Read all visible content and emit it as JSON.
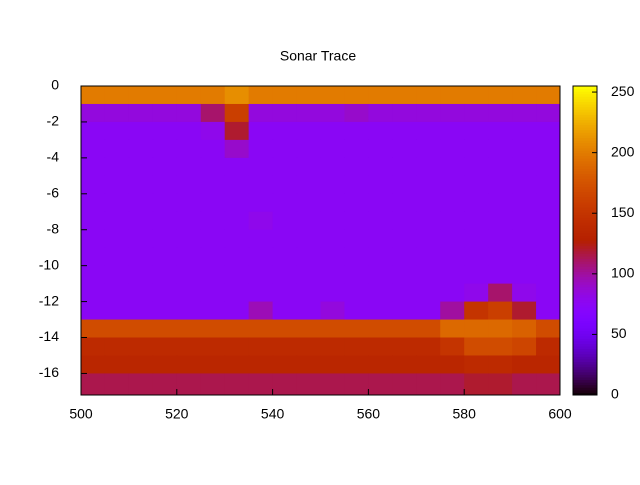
{
  "chart_data": {
    "type": "heatmap",
    "title": "Sonar Trace",
    "xbins": [
      500,
      505,
      510,
      515,
      520,
      525,
      530,
      535,
      540,
      545,
      550,
      555,
      560,
      565,
      570,
      575,
      580,
      585,
      590,
      595,
      600
    ],
    "ybins": [
      0,
      -1,
      -2,
      -3,
      -4,
      -5,
      -6,
      -7,
      -8,
      -9,
      -10,
      -11,
      -12,
      -13,
      -14,
      -15,
      -16,
      -17.2
    ],
    "values": [
      [
        200,
        200,
        200,
        200,
        200,
        200,
        210,
        200,
        200,
        200,
        200,
        200,
        200,
        200,
        200,
        200,
        200,
        200,
        200,
        200
      ],
      [
        85,
        85,
        85,
        85,
        85,
        110,
        160,
        85,
        85,
        85,
        85,
        90,
        85,
        85,
        85,
        85,
        85,
        85,
        85,
        85
      ],
      [
        75,
        75,
        75,
        75,
        75,
        80,
        120,
        75,
        75,
        75,
        75,
        75,
        75,
        75,
        75,
        75,
        75,
        75,
        75,
        75
      ],
      [
        75,
        75,
        75,
        75,
        75,
        75,
        90,
        75,
        75,
        75,
        75,
        75,
        75,
        75,
        75,
        75,
        75,
        75,
        75,
        75
      ],
      [
        75,
        75,
        75,
        75,
        75,
        75,
        75,
        75,
        75,
        75,
        75,
        75,
        75,
        75,
        75,
        75,
        75,
        75,
        75,
        75
      ],
      [
        75,
        75,
        75,
        75,
        75,
        75,
        75,
        75,
        75,
        75,
        75,
        75,
        75,
        75,
        75,
        75,
        75,
        75,
        75,
        75
      ],
      [
        75,
        75,
        75,
        75,
        75,
        75,
        75,
        75,
        75,
        75,
        75,
        75,
        75,
        75,
        75,
        75,
        75,
        75,
        75,
        75
      ],
      [
        75,
        75,
        75,
        75,
        75,
        75,
        75,
        80,
        75,
        75,
        75,
        75,
        75,
        75,
        75,
        75,
        75,
        75,
        75,
        75
      ],
      [
        75,
        75,
        75,
        75,
        75,
        75,
        75,
        75,
        75,
        75,
        75,
        75,
        75,
        75,
        75,
        75,
        75,
        75,
        75,
        75
      ],
      [
        75,
        75,
        75,
        75,
        75,
        75,
        75,
        75,
        75,
        75,
        75,
        75,
        75,
        75,
        75,
        75,
        75,
        75,
        75,
        75
      ],
      [
        75,
        75,
        75,
        75,
        75,
        75,
        75,
        75,
        75,
        75,
        75,
        75,
        75,
        75,
        75,
        75,
        75,
        75,
        75,
        75
      ],
      [
        75,
        75,
        75,
        75,
        75,
        75,
        75,
        75,
        75,
        75,
        75,
        75,
        75,
        75,
        75,
        75,
        80,
        110,
        80,
        75
      ],
      [
        75,
        75,
        75,
        75,
        75,
        75,
        75,
        95,
        75,
        75,
        85,
        75,
        75,
        75,
        75,
        100,
        150,
        160,
        120,
        75
      ],
      [
        170,
        170,
        170,
        170,
        170,
        170,
        170,
        170,
        170,
        170,
        170,
        170,
        170,
        170,
        170,
        190,
        190,
        190,
        185,
        170
      ],
      [
        140,
        140,
        140,
        140,
        140,
        140,
        140,
        140,
        140,
        140,
        140,
        140,
        140,
        140,
        140,
        150,
        170,
        170,
        165,
        140
      ],
      [
        135,
        135,
        135,
        135,
        135,
        135,
        135,
        135,
        135,
        135,
        135,
        135,
        135,
        135,
        135,
        135,
        140,
        140,
        135,
        135
      ],
      [
        115,
        115,
        115,
        115,
        115,
        115,
        115,
        115,
        115,
        115,
        115,
        115,
        115,
        115,
        115,
        115,
        120,
        120,
        115,
        115
      ]
    ],
    "xlim": [
      500,
      600
    ],
    "xticks": [
      500,
      520,
      540,
      560,
      580,
      600
    ],
    "ylim": [
      -17.2,
      0
    ],
    "yticks": [
      0,
      -2,
      -4,
      -6,
      -8,
      -10,
      -12,
      -14,
      -16
    ],
    "clim": [
      0,
      255
    ],
    "cticks": [
      0,
      50,
      100,
      150,
      200,
      250
    ]
  }
}
